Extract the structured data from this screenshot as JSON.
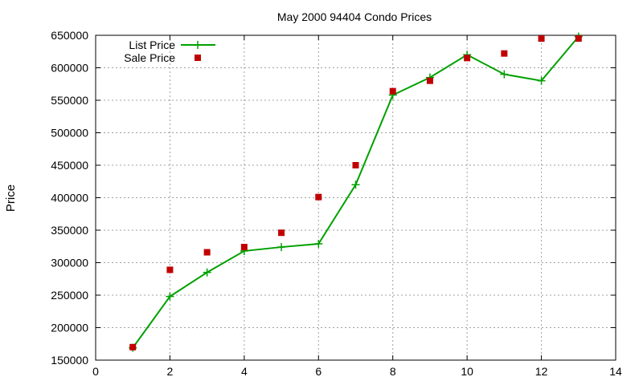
{
  "chart_data": {
    "type": "line",
    "title": "May 2000 94404 Condo Prices",
    "xlabel": "",
    "ylabel": "Price",
    "xlim": [
      0,
      14
    ],
    "ylim": [
      150000,
      650000
    ],
    "x_ticks": [
      0,
      2,
      4,
      6,
      8,
      10,
      12,
      14
    ],
    "y_ticks": [
      150000,
      200000,
      250000,
      300000,
      350000,
      400000,
      450000,
      500000,
      550000,
      600000,
      650000
    ],
    "grid": true,
    "legend_position": "top-left",
    "series": [
      {
        "name": "List Price",
        "style": "line-with-plus-markers",
        "color": "#00a000",
        "x": [
          1,
          2,
          3,
          4,
          5,
          6,
          7,
          8,
          9,
          10,
          11,
          12,
          13
        ],
        "y": [
          169000,
          248000,
          285000,
          318000,
          324000,
          329000,
          420000,
          558000,
          585000,
          620000,
          590000,
          580000,
          648000
        ]
      },
      {
        "name": "Sale Price",
        "style": "square-markers",
        "color": "#c00000",
        "x": [
          1,
          2,
          3,
          4,
          5,
          6,
          7,
          8,
          9,
          10,
          11,
          12,
          13
        ],
        "y": [
          170000,
          289000,
          316000,
          324000,
          346000,
          401000,
          450000,
          564000,
          580000,
          615000,
          622000,
          645000,
          645000
        ]
      }
    ]
  }
}
